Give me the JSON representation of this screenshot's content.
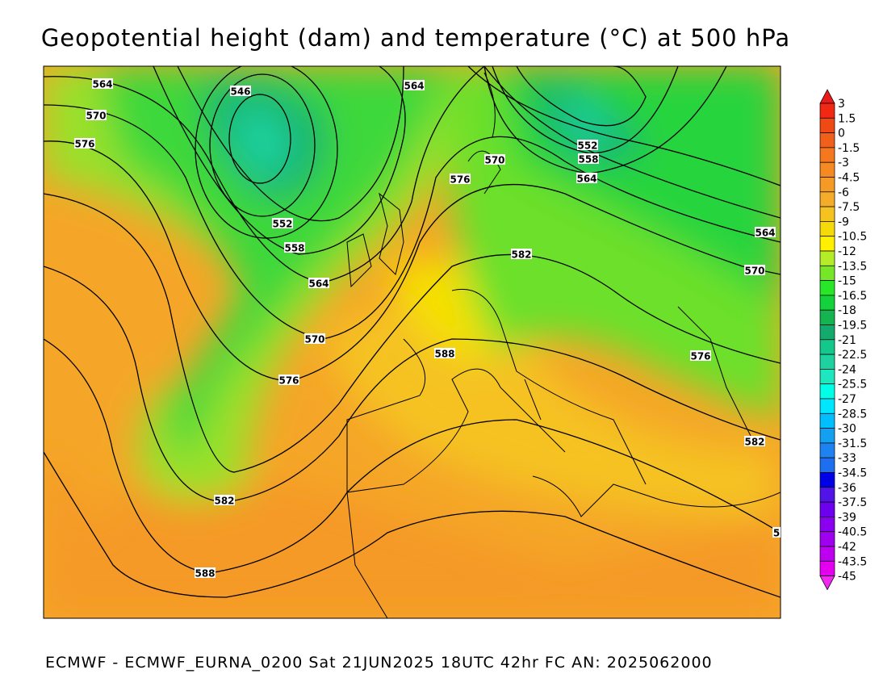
{
  "title": "Geopotential height (dam) and temperature (°C) at 500 hPa",
  "footer": "ECMWF - ECMWF_EURNA_0200 Sat 21JUN2025 18UTC 42hr FC AN: 2025062000",
  "colorbar": {
    "labels": [
      "3",
      "1.5",
      "0",
      "-1.5",
      "-3",
      "-4.5",
      "-6",
      "-7.5",
      "-9",
      "-10.5",
      "-12",
      "-13.5",
      "-15",
      "-16.5",
      "-18",
      "-19.5",
      "-21",
      "-22.5",
      "-24",
      "-25.5",
      "-27",
      "-28.5",
      "-30",
      "-31.5",
      "-33",
      "-34.5",
      "-36",
      "-37.5",
      "-39",
      "-40.5",
      "-42",
      "-43.5",
      "-45"
    ],
    "colors": [
      "#e81a1a",
      "#f02814",
      "#f04a14",
      "#f0601a",
      "#f5781e",
      "#f58a22",
      "#f59a26",
      "#f5ac28",
      "#f5c220",
      "#f5da0a",
      "#fff000",
      "#b4ec28",
      "#78e628",
      "#28e628",
      "#14d23c",
      "#14b450",
      "#14aa6e",
      "#14c88c",
      "#1ed2a0",
      "#1ee6be",
      "#00ffe6",
      "#00e6ff",
      "#00beff",
      "#14a0f0",
      "#1e82f0",
      "#1e6ef0",
      "#0000e6",
      "#5014e6",
      "#6e00f0",
      "#8c00f0",
      "#a000f0",
      "#be00f0",
      "#e600f0",
      "#f028f0"
    ]
  },
  "contour_labels": [
    "564",
    "570",
    "576",
    "546",
    "564",
    "552",
    "558",
    "564",
    "570",
    "576",
    "582",
    "588",
    "570",
    "576",
    "552",
    "558",
    "564",
    "582",
    "588",
    "564",
    "570",
    "576",
    "582",
    "5"
  ]
}
